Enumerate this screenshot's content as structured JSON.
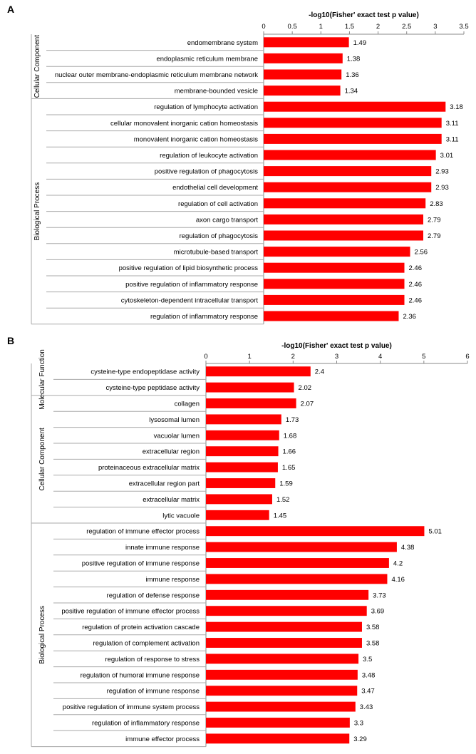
{
  "chart_data": [
    {
      "panel": "A",
      "type": "bar",
      "orientation": "horizontal",
      "xlabel": "-log10(Fisher' exact test p value)",
      "xlim": [
        0,
        3.5
      ],
      "xticks": [
        "0",
        "0.5",
        "1",
        "1.5",
        "2",
        "2.5",
        "3",
        "3.5"
      ],
      "bar_color": "#ff0000",
      "groups": [
        {
          "name": "Cellular Component",
          "categories": [
            "endomembrane system",
            "endoplasmic reticulum membrane",
            "nuclear outer membrane-endoplasmic reticulum membrane network",
            "membrane-bounded vesicle"
          ],
          "values": [
            1.49,
            1.38,
            1.36,
            1.34
          ]
        },
        {
          "name": "Biological Process",
          "categories": [
            "regulation of lymphocyte activation",
            "cellular monovalent inorganic cation homeostasis",
            "monovalent inorganic cation homeostasis",
            "regulation of leukocyte activation",
            "positive regulation of phagocytosis",
            "endothelial cell development",
            "regulation of cell activation",
            "axon cargo transport",
            "regulation of phagocytosis",
            "microtubule-based transport",
            "positive regulation of lipid biosynthetic process",
            "positive regulation of inflammatory response",
            "cytoskeleton-dependent intracellular transport",
            "regulation of inflammatory response"
          ],
          "values": [
            3.18,
            3.11,
            3.11,
            3.01,
            2.93,
            2.93,
            2.83,
            2.79,
            2.79,
            2.56,
            2.46,
            2.46,
            2.46,
            2.36
          ]
        }
      ]
    },
    {
      "panel": "B",
      "type": "bar",
      "orientation": "horizontal",
      "xlabel": "-log10(Fisher' exact test p value)",
      "xlim": [
        0,
        6
      ],
      "xticks": [
        "0",
        "1",
        "2",
        "3",
        "4",
        "5",
        "6"
      ],
      "bar_color": "#ff0000",
      "groups": [
        {
          "name": "Molecular Function",
          "categories": [
            "cysteine-type endopeptidase activity",
            "cysteine-type peptidase activity"
          ],
          "values": [
            2.4,
            2.02
          ]
        },
        {
          "name": "Cellular Component",
          "categories": [
            "collagen",
            "lysosomal lumen",
            "vacuolar lumen",
            "extracellular region",
            "proteinaceous extracellular matrix",
            "extracellular region part",
            "extracellular matrix",
            "lytic vacuole"
          ],
          "values": [
            2.07,
            1.73,
            1.68,
            1.66,
            1.65,
            1.59,
            1.52,
            1.45
          ]
        },
        {
          "name": "Biological Process",
          "categories": [
            "regulation of immune effector process",
            "innate immune response",
            "positive regulation of immune response",
            "immune response",
            "regulation of defense response",
            "positive regulation of immune effector process",
            "regulation of protein activation cascade",
            "regulation of complement activation",
            "regulation of response to stress",
            "regulation of humoral immune response",
            "regulation of immune response",
            "positive regulation of immune system process",
            "regulation of inflammatory response",
            "immune effector process"
          ],
          "values": [
            5.01,
            4.38,
            4.2,
            4.16,
            3.73,
            3.69,
            3.58,
            3.58,
            3.5,
            3.48,
            3.47,
            3.43,
            3.3,
            3.29
          ]
        }
      ]
    }
  ]
}
